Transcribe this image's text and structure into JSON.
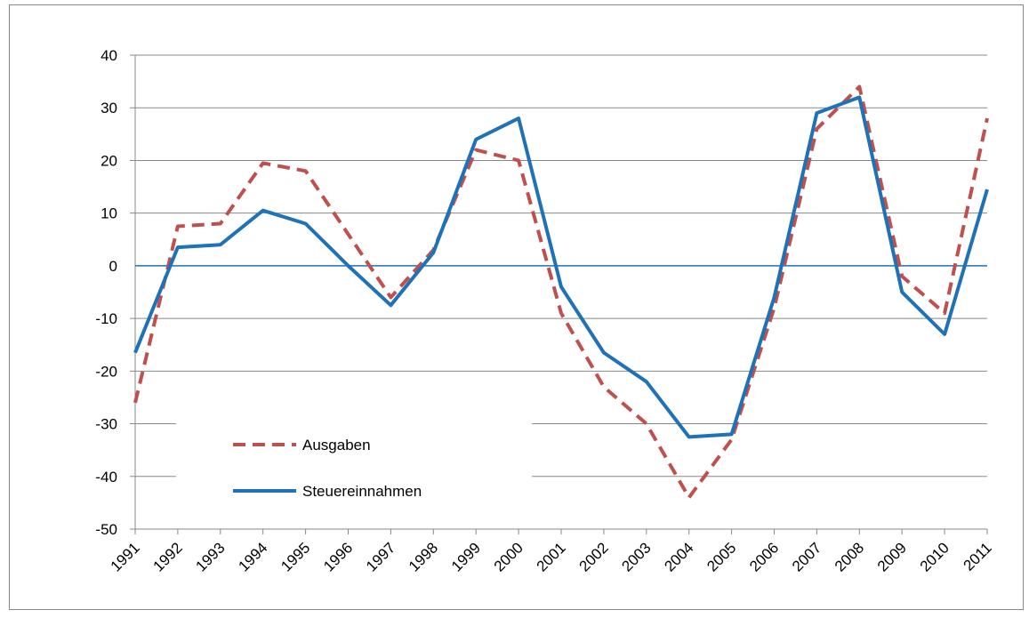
{
  "chart_data": {
    "type": "line",
    "categories": [
      "1991",
      "1992",
      "1993",
      "1994",
      "1995",
      "1996",
      "1997",
      "1998",
      "1999",
      "2000",
      "2001",
      "2002",
      "2003",
      "2004",
      "2005",
      "2006",
      "2007",
      "2008",
      "2009",
      "2010",
      "2011"
    ],
    "series": [
      {
        "name": "Ausgaben",
        "color": "#c0504d",
        "dashed": true,
        "values": [
          -26,
          7.5,
          8,
          19.5,
          18,
          6,
          -6,
          3,
          22,
          20,
          -9,
          -23,
          -30,
          -44,
          -33,
          -8,
          26,
          34,
          -2,
          -9,
          28
        ]
      },
      {
        "name": "Steuereinnahmen",
        "color": "#1f72b8",
        "dashed": false,
        "values": [
          -16.5,
          3.5,
          4,
          10.5,
          8,
          0,
          -7.5,
          2.5,
          24,
          28,
          -4,
          -16.5,
          -22,
          -32.5,
          -32,
          -6,
          29,
          32,
          -5,
          -13,
          14.5
        ]
      }
    ],
    "ylim": [
      -50,
      40
    ],
    "yticks": [
      -50,
      -40,
      -30,
      -20,
      -10,
      0,
      10,
      20,
      30,
      40
    ],
    "grid": true,
    "legend": "lower-left"
  }
}
